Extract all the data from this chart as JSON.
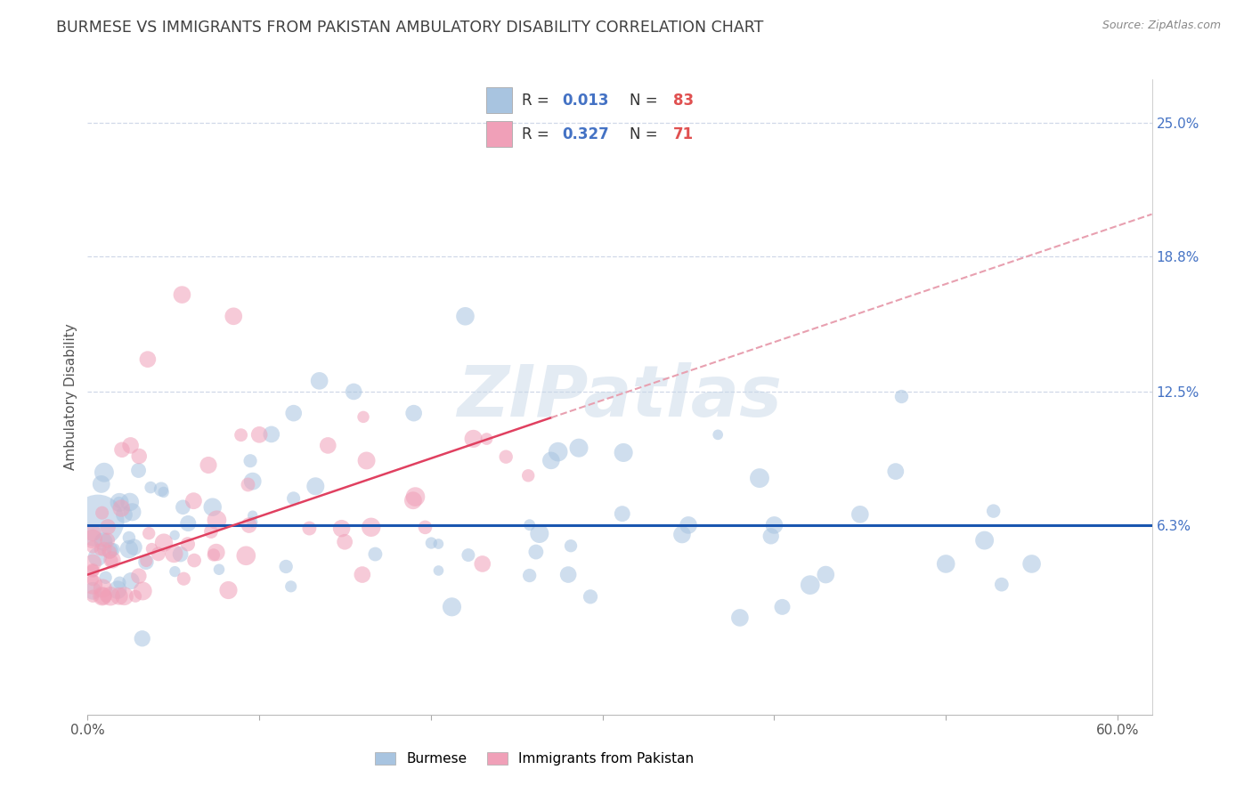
{
  "title": "BURMESE VS IMMIGRANTS FROM PAKISTAN AMBULATORY DISABILITY CORRELATION CHART",
  "source": "Source: ZipAtlas.com",
  "ylabel": "Ambulatory Disability",
  "xlim": [
    0.0,
    0.62
  ],
  "ylim": [
    -0.025,
    0.27
  ],
  "yticks": [
    0.063,
    0.125,
    0.188,
    0.25
  ],
  "ytick_labels": [
    "6.3%",
    "12.5%",
    "18.8%",
    "25.0%"
  ],
  "xticks": [
    0.0,
    0.1,
    0.2,
    0.3,
    0.4,
    0.5,
    0.6
  ],
  "xtick_labels": [
    "0.0%",
    "",
    "",
    "",
    "",
    "",
    "60.0%"
  ],
  "grid_color": "#d0d8e8",
  "background_color": "#ffffff",
  "watermark": "ZIPatlas",
  "burmese_color": "#a8c4e0",
  "pakistan_color": "#f0a0b8",
  "burmese_line_color": "#1a56b0",
  "pakistan_line_color": "#e04060",
  "pakistan_dash_color": "#e8a0b0",
  "burmese_R": 0.013,
  "burmese_N": 83,
  "pakistan_R": 0.327,
  "pakistan_N": 71,
  "legend_R_color": "#4472c4",
  "legend_N_color": "#e05050",
  "title_color": "#404040",
  "axis_color": "#888888",
  "right_tick_color": "#4472c4"
}
